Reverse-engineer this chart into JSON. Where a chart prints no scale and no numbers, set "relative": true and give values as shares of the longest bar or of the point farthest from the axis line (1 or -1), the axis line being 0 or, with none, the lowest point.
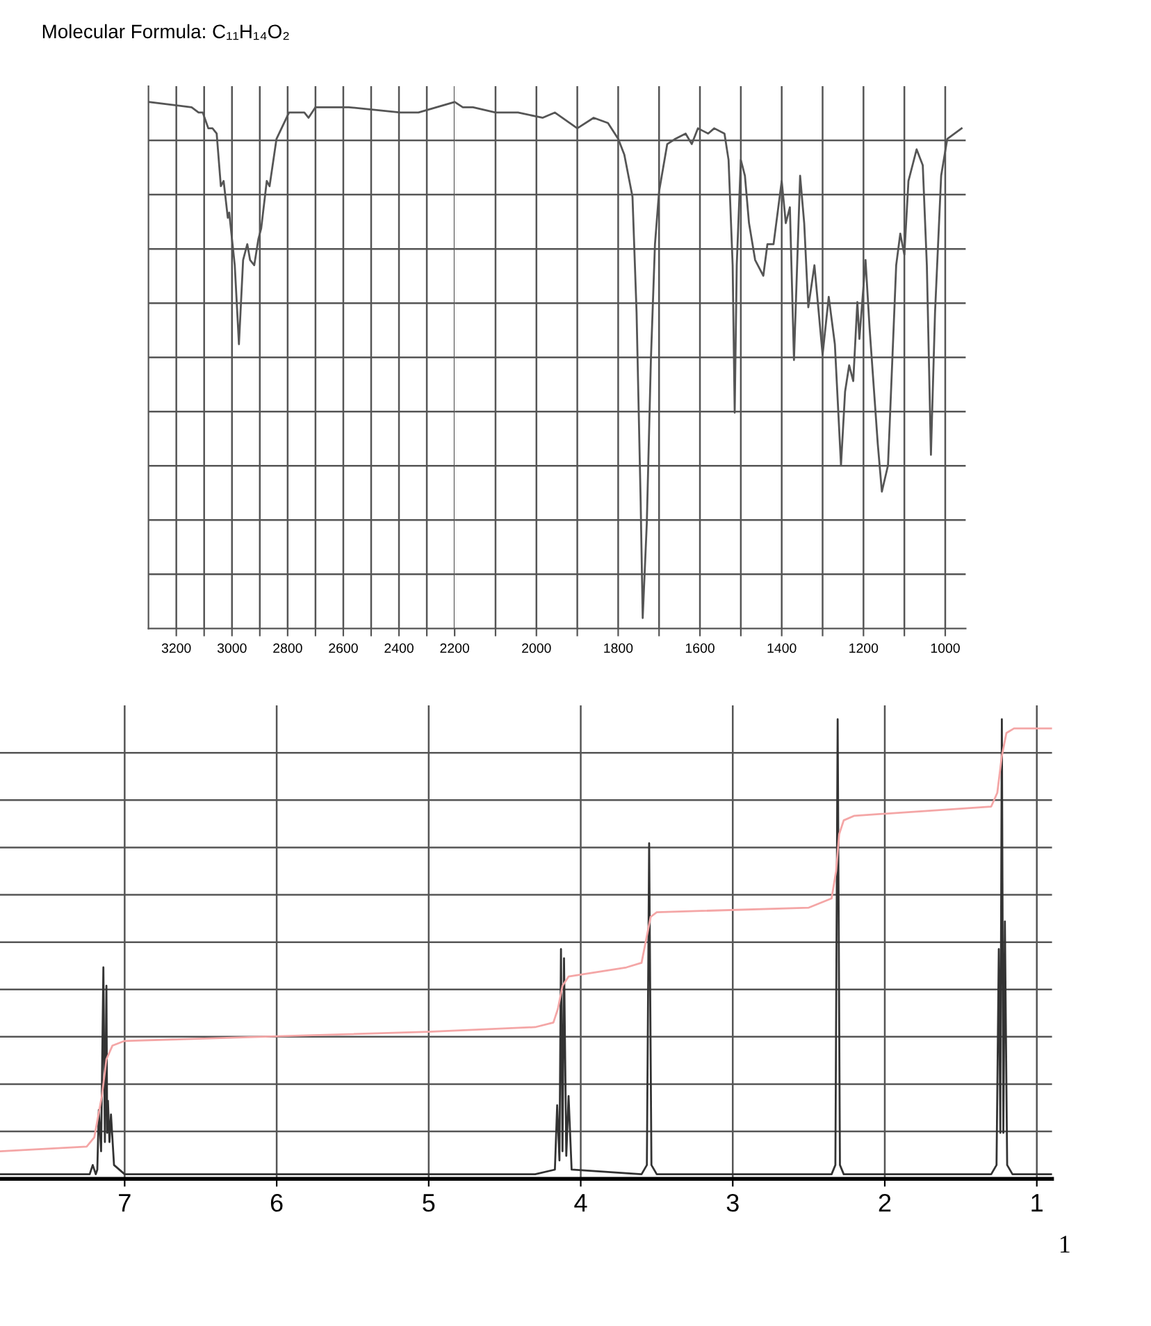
{
  "chart_data": [
    {
      "type": "line",
      "title": "Molecular Formula: C₁₁H₁₄O₂",
      "relative": true,
      "xlim": [
        3300,
        2200
      ],
      "xticks": [
        3200,
        {
          "value": 3100,
          "label": null
        },
        3000,
        {
          "value": 2900,
          "label": null
        },
        2800,
        {
          "value": 2700,
          "label": null
        },
        2600,
        {
          "value": 2500,
          "label": null
        },
        2400,
        {
          "value": 2300,
          "label": null
        },
        2200
      ],
      "grid": true,
      "tick_labels": "x",
      "legend": false,
      "series": [
        {
          "color": "#555555",
          "x": [
            3300,
            3145,
            3120,
            3105,
            3085,
            3070,
            3055,
            3040,
            3030,
            3015,
            3010,
            2990,
            2975,
            2960,
            2945,
            2935,
            2920,
            2905,
            2895,
            2875,
            2865,
            2840,
            2795,
            2740,
            2725,
            2700,
            2580,
            2395,
            2330,
            2200
          ],
          "values": [
            1.0,
            0.99,
            0.98,
            0.98,
            0.95,
            0.95,
            0.94,
            0.84,
            0.85,
            0.78,
            0.79,
            0.69,
            0.54,
            0.7,
            0.73,
            0.7,
            0.69,
            0.74,
            0.76,
            0.85,
            0.84,
            0.93,
            0.98,
            0.98,
            0.97,
            0.99,
            0.99,
            0.98,
            0.98,
            1.0
          ]
        }
      ]
    },
    {
      "type": "line",
      "relative": true,
      "xlim": [
        2200,
        950
      ],
      "xticks": [
        {
          "value": 2100,
          "label": null
        },
        2000,
        {
          "value": 1900,
          "label": null
        },
        1800,
        {
          "value": 1700,
          "label": null
        },
        1600,
        {
          "value": 1500,
          "label": null
        },
        1400,
        {
          "value": 1300,
          "label": null
        },
        1200,
        {
          "value": 1100,
          "label": null
        },
        1000
      ],
      "grid": true,
      "tick_labels": "x",
      "legend": false,
      "series": [
        {
          "color": "#555555",
          "x": [
            2200,
            2180,
            2155,
            2100,
            2045,
            1985,
            1955,
            1900,
            1860,
            1825,
            1800,
            1785,
            1765,
            1755,
            1745,
            1740,
            1730,
            1720,
            1710,
            1700,
            1680,
            1660,
            1635,
            1620,
            1605,
            1580,
            1565,
            1540,
            1530,
            1520,
            1515,
            1510,
            1500,
            1490,
            1480,
            1465,
            1445,
            1435,
            1420,
            1400,
            1390,
            1380,
            1370,
            1355,
            1345,
            1335,
            1320,
            1300,
            1285,
            1270,
            1255,
            1245,
            1235,
            1225,
            1215,
            1210,
            1195,
            1185,
            1165,
            1155,
            1140,
            1120,
            1110,
            1100,
            1090,
            1070,
            1055,
            1045,
            1035,
            1025,
            1010,
            995,
            960
          ],
          "values": [
            1.0,
            0.99,
            0.99,
            0.98,
            0.98,
            0.97,
            0.98,
            0.95,
            0.97,
            0.96,
            0.93,
            0.9,
            0.82,
            0.6,
            0.24,
            0.02,
            0.2,
            0.51,
            0.73,
            0.83,
            0.92,
            0.93,
            0.94,
            0.92,
            0.95,
            0.94,
            0.95,
            0.94,
            0.89,
            0.69,
            0.41,
            0.69,
            0.89,
            0.86,
            0.77,
            0.7,
            0.67,
            0.73,
            0.73,
            0.85,
            0.77,
            0.8,
            0.51,
            0.86,
            0.77,
            0.61,
            0.69,
            0.52,
            0.63,
            0.54,
            0.31,
            0.45,
            0.5,
            0.47,
            0.62,
            0.55,
            0.7,
            0.57,
            0.35,
            0.26,
            0.31,
            0.69,
            0.75,
            0.71,
            0.85,
            0.91,
            0.88,
            0.69,
            0.33,
            0.6,
            0.86,
            0.93,
            0.95
          ]
        }
      ]
    },
    {
      "type": "line",
      "relative": true,
      "xlim": [
        7.82,
        0.9
      ],
      "xticks": [
        7,
        6,
        5,
        4,
        3,
        2,
        1
      ],
      "grid": true,
      "tick_labels": "x",
      "legend": false,
      "annotations": [
        "1"
      ],
      "series": [
        {
          "color": "#333333",
          "x": [
            7.82,
            7.23,
            7.21,
            7.19,
            7.18,
            7.17,
            7.155,
            7.14,
            7.13,
            7.12,
            7.115,
            7.11,
            7.1,
            7.09,
            7.07,
            7.0,
            4.3,
            4.17,
            4.155,
            4.14,
            4.13,
            4.12,
            4.11,
            4.095,
            4.08,
            4.06,
            3.6,
            3.565,
            3.55,
            3.535,
            3.5,
            2.35,
            2.325,
            2.31,
            2.295,
            2.27,
            1.3,
            1.265,
            1.25,
            1.24,
            1.23,
            1.22,
            1.21,
            1.195,
            1.16,
            0.9
          ],
          "values": [
            0.01,
            0.01,
            0.03,
            0.01,
            0.02,
            0.15,
            0.06,
            0.46,
            0.08,
            0.42,
            0.1,
            0.17,
            0.08,
            0.14,
            0.03,
            0.01,
            0.01,
            0.02,
            0.16,
            0.04,
            0.5,
            0.06,
            0.48,
            0.05,
            0.18,
            0.02,
            0.01,
            0.03,
            0.73,
            0.03,
            0.01,
            0.01,
            0.03,
            1.0,
            0.03,
            0.01,
            0.01,
            0.03,
            0.5,
            0.1,
            1.0,
            0.1,
            0.56,
            0.03,
            0.01,
            0.01
          ]
        },
        {
          "color": "#f4a6a6",
          "x": [
            7.82,
            7.25,
            7.2,
            7.15,
            7.12,
            7.08,
            7.0,
            6.0,
            5.0,
            4.3,
            4.18,
            4.15,
            4.12,
            4.08,
            3.7,
            3.6,
            3.57,
            3.54,
            3.5,
            2.5,
            2.35,
            2.32,
            2.3,
            2.27,
            2.2,
            1.3,
            1.26,
            1.23,
            1.2,
            1.15,
            0.9
          ],
          "values": [
            0.06,
            0.07,
            0.09,
            0.18,
            0.26,
            0.29,
            0.3,
            0.31,
            0.32,
            0.33,
            0.34,
            0.37,
            0.42,
            0.44,
            0.46,
            0.47,
            0.52,
            0.57,
            0.58,
            0.59,
            0.61,
            0.67,
            0.75,
            0.78,
            0.79,
            0.81,
            0.84,
            0.92,
            0.97,
            0.98,
            0.98
          ]
        }
      ]
    }
  ]
}
